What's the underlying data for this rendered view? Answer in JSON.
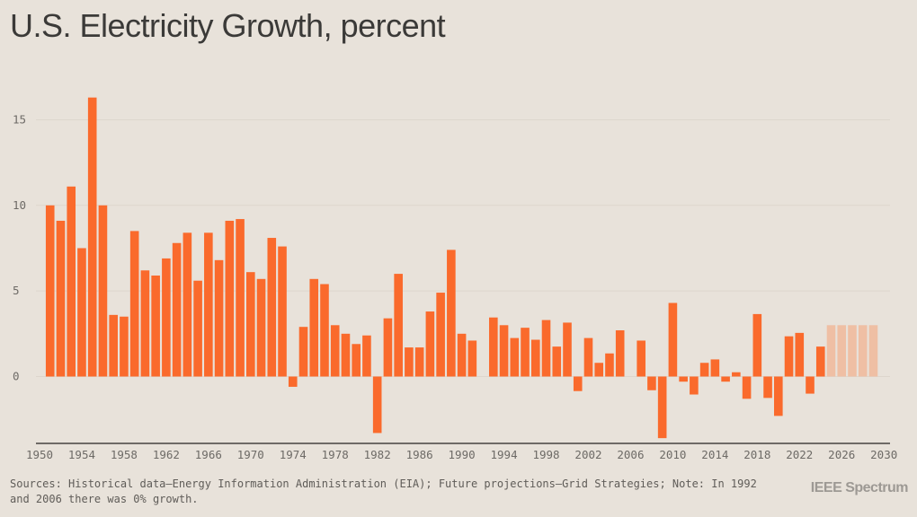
{
  "chart_data": {
    "type": "bar",
    "title": "U.S. Electricity Growth, percent",
    "xlabel": "",
    "ylabel": "",
    "ylim": [
      -4,
      17
    ],
    "xlim": [
      1950,
      2030
    ],
    "yticks": [
      0,
      5,
      10,
      15
    ],
    "xticks": [
      1950,
      1954,
      1958,
      1962,
      1966,
      1970,
      1974,
      1978,
      1982,
      1986,
      1990,
      1994,
      1998,
      2002,
      2006,
      2010,
      2014,
      2018,
      2022,
      2026,
      2030
    ],
    "grid": true,
    "colors": {
      "historical": "#fa6a2c",
      "projection": "#efbfa4"
    },
    "series": [
      {
        "name": "Historical",
        "x": [
          1951,
          1952,
          1953,
          1954,
          1955,
          1956,
          1957,
          1958,
          1959,
          1960,
          1961,
          1962,
          1963,
          1964,
          1965,
          1966,
          1967,
          1968,
          1969,
          1970,
          1971,
          1972,
          1973,
          1974,
          1975,
          1976,
          1977,
          1978,
          1979,
          1980,
          1981,
          1982,
          1983,
          1984,
          1985,
          1986,
          1987,
          1988,
          1989,
          1990,
          1991,
          1992,
          1993,
          1994,
          1995,
          1996,
          1997,
          1998,
          1999,
          2000,
          2001,
          2002,
          2003,
          2004,
          2005,
          2006,
          2007,
          2008,
          2009,
          2010,
          2011,
          2012,
          2013,
          2014,
          2015,
          2016,
          2017,
          2018,
          2019,
          2020,
          2021,
          2022,
          2023,
          2024
        ],
        "values": [
          10.0,
          9.1,
          11.1,
          7.5,
          16.3,
          10.0,
          3.6,
          3.5,
          8.5,
          6.2,
          5.9,
          6.9,
          7.8,
          8.4,
          5.6,
          8.4,
          6.8,
          9.1,
          9.2,
          6.1,
          5.7,
          8.1,
          7.6,
          -0.6,
          2.9,
          5.7,
          5.4,
          3.0,
          2.5,
          1.9,
          2.4,
          -3.3,
          3.4,
          6.0,
          1.7,
          1.7,
          3.8,
          4.9,
          7.4,
          2.5,
          2.1,
          0,
          3.45,
          3.0,
          2.25,
          2.85,
          2.15,
          3.3,
          1.75,
          3.15,
          -0.85,
          2.25,
          0.8,
          1.35,
          2.7,
          0,
          2.1,
          -0.8,
          -3.6,
          4.3,
          -0.3,
          -1.05,
          0.8,
          1.0,
          -0.3,
          0.25,
          -1.3,
          3.65,
          -1.25,
          -2.3,
          2.35,
          2.55,
          -1.0,
          1.75
        ]
      },
      {
        "name": "Projection",
        "x": [
          2025,
          2026,
          2027,
          2028,
          2029
        ],
        "values": [
          3.0,
          3.0,
          3.0,
          3.0,
          3.0
        ]
      }
    ]
  },
  "footer": {
    "line1": "Sources: Historical data—Energy Information Administration (EIA); Future projections—Grid Strategies; Note: In 1992",
    "line2": "and 2006 there was 0% growth."
  },
  "logo": "IEEE Spectrum"
}
